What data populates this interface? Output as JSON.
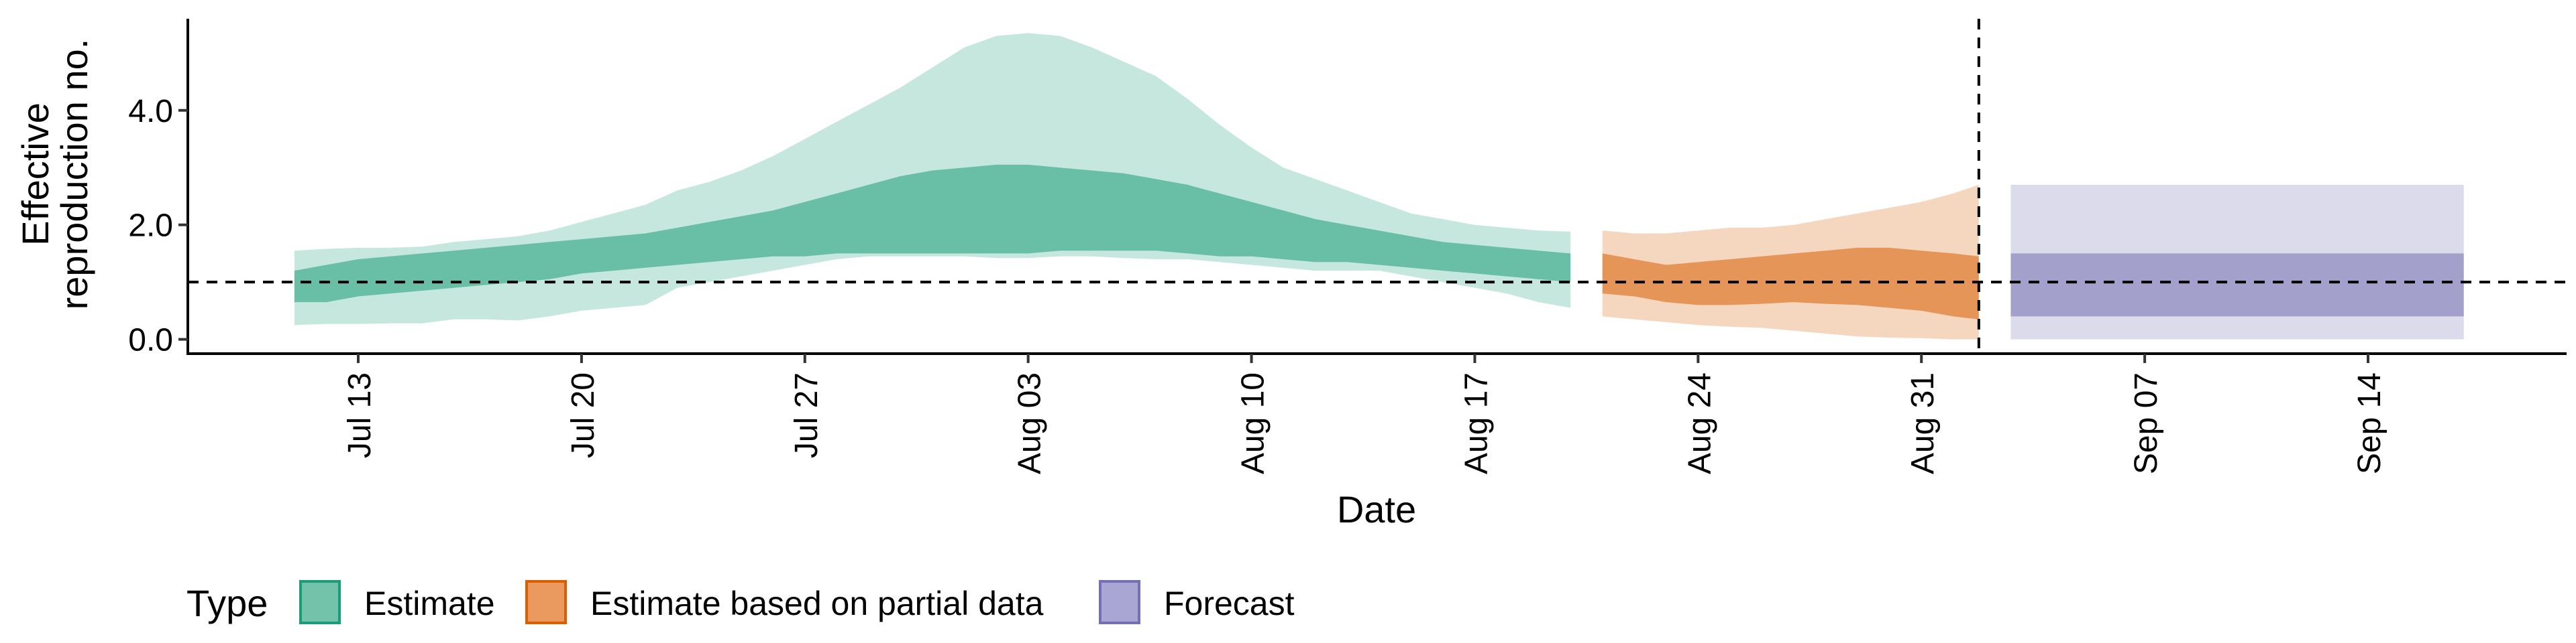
{
  "chart_data": {
    "type": "area",
    "title": "",
    "xlabel": "Date",
    "ylabel_lines": [
      "Effective",
      "reproduction no."
    ],
    "ylim": [
      -0.25,
      5.6
    ],
    "yticks": [
      {
        "value": 0,
        "label": "0.0"
      },
      {
        "value": 2,
        "label": "2.0"
      },
      {
        "value": 4,
        "label": "4.0"
      }
    ],
    "xticks": [
      {
        "day": 13,
        "label": "Jul 13"
      },
      {
        "day": 20,
        "label": "Jul 20"
      },
      {
        "day": 27,
        "label": "Jul 27"
      },
      {
        "day": 34,
        "label": "Aug 03"
      },
      {
        "day": 41,
        "label": "Aug 10"
      },
      {
        "day": 48,
        "label": "Aug 17"
      },
      {
        "day": 55,
        "label": "Aug 24"
      },
      {
        "day": 62,
        "label": "Aug 31"
      },
      {
        "day": 69,
        "label": "Sep 07"
      },
      {
        "day": 76,
        "label": "Sep 14"
      }
    ],
    "reference_hline": 1,
    "reference_vline_day": 63.8,
    "grid": false,
    "legend": {
      "title": "Type",
      "placement": "bottom",
      "items": [
        {
          "label": "Estimate",
          "fill": "#72c3aa",
          "stroke": "#1b9e77"
        },
        {
          "label": "Estimate based on partial data",
          "fill": "#eb9a5f",
          "stroke": "#d95f02"
        },
        {
          "label": "Forecast",
          "fill": "#a9a6d3",
          "stroke": "#7570b3"
        }
      ]
    },
    "series": [
      {
        "type": "Estimate",
        "color": "#1b9e77",
        "x": [
          11,
          12,
          13,
          14,
          15,
          16,
          17,
          18,
          19,
          20,
          21,
          22,
          23,
          24,
          25,
          26,
          27,
          28,
          29,
          30,
          31,
          32,
          33,
          34,
          35,
          36,
          37,
          38,
          39,
          40,
          41,
          42,
          43,
          44,
          45,
          46,
          47,
          48,
          49,
          50,
          51
        ],
        "outer_low": [
          0.25,
          0.27,
          0.27,
          0.28,
          0.28,
          0.35,
          0.35,
          0.33,
          0.4,
          0.5,
          0.55,
          0.6,
          0.9,
          1.0,
          1.1,
          1.2,
          1.3,
          1.4,
          1.45,
          1.45,
          1.45,
          1.45,
          1.42,
          1.42,
          1.45,
          1.45,
          1.42,
          1.4,
          1.4,
          1.35,
          1.3,
          1.25,
          1.2,
          1.2,
          1.2,
          1.1,
          1.0,
          0.9,
          0.8,
          0.65,
          0.55
        ],
        "outer_high": [
          1.55,
          1.58,
          1.6,
          1.6,
          1.62,
          1.7,
          1.75,
          1.8,
          1.9,
          2.05,
          2.2,
          2.35,
          2.6,
          2.75,
          2.95,
          3.2,
          3.5,
          3.8,
          4.1,
          4.4,
          4.75,
          5.1,
          5.3,
          5.35,
          5.3,
          5.1,
          4.85,
          4.6,
          4.2,
          3.75,
          3.35,
          3.0,
          2.8,
          2.6,
          2.4,
          2.2,
          2.1,
          2.0,
          1.95,
          1.9,
          1.88
        ],
        "inner_low": [
          0.65,
          0.65,
          0.75,
          0.8,
          0.85,
          0.9,
          0.95,
          1.0,
          1.05,
          1.15,
          1.2,
          1.25,
          1.3,
          1.35,
          1.4,
          1.45,
          1.45,
          1.5,
          1.5,
          1.5,
          1.5,
          1.5,
          1.5,
          1.5,
          1.55,
          1.55,
          1.55,
          1.55,
          1.5,
          1.45,
          1.45,
          1.4,
          1.35,
          1.35,
          1.3,
          1.25,
          1.2,
          1.15,
          1.1,
          1.05,
          1.0
        ],
        "inner_high": [
          1.2,
          1.3,
          1.4,
          1.45,
          1.5,
          1.55,
          1.6,
          1.65,
          1.7,
          1.75,
          1.8,
          1.85,
          1.95,
          2.05,
          2.15,
          2.25,
          2.4,
          2.55,
          2.7,
          2.85,
          2.95,
          3.0,
          3.05,
          3.05,
          3.0,
          2.95,
          2.9,
          2.8,
          2.7,
          2.55,
          2.4,
          2.25,
          2.1,
          2.0,
          1.9,
          1.8,
          1.7,
          1.65,
          1.6,
          1.55,
          1.5
        ]
      },
      {
        "type": "Estimate based on partial data",
        "color": "#d95f02",
        "x": [
          52,
          53,
          54,
          55,
          56,
          57,
          58,
          59,
          60,
          61,
          62,
          63,
          63.8
        ],
        "outer_low": [
          0.4,
          0.35,
          0.3,
          0.25,
          0.22,
          0.2,
          0.15,
          0.1,
          0.05,
          0.03,
          0.02,
          0.0,
          0.0
        ],
        "outer_high": [
          1.9,
          1.85,
          1.85,
          1.9,
          1.95,
          1.95,
          2.0,
          2.1,
          2.2,
          2.3,
          2.4,
          2.55,
          2.7
        ],
        "inner_low": [
          0.8,
          0.75,
          0.65,
          0.6,
          0.6,
          0.62,
          0.65,
          0.62,
          0.6,
          0.55,
          0.5,
          0.4,
          0.35
        ],
        "inner_high": [
          1.5,
          1.4,
          1.3,
          1.35,
          1.4,
          1.45,
          1.5,
          1.55,
          1.6,
          1.6,
          1.55,
          1.5,
          1.45
        ]
      },
      {
        "type": "Forecast",
        "color": "#7570b3",
        "x": [
          64.8,
          79
        ],
        "outer_low": [
          0.0,
          0.0
        ],
        "outer_high": [
          2.7,
          2.7
        ],
        "inner_low": [
          0.4,
          0.4
        ],
        "inner_high": [
          1.5,
          1.5
        ]
      }
    ]
  }
}
